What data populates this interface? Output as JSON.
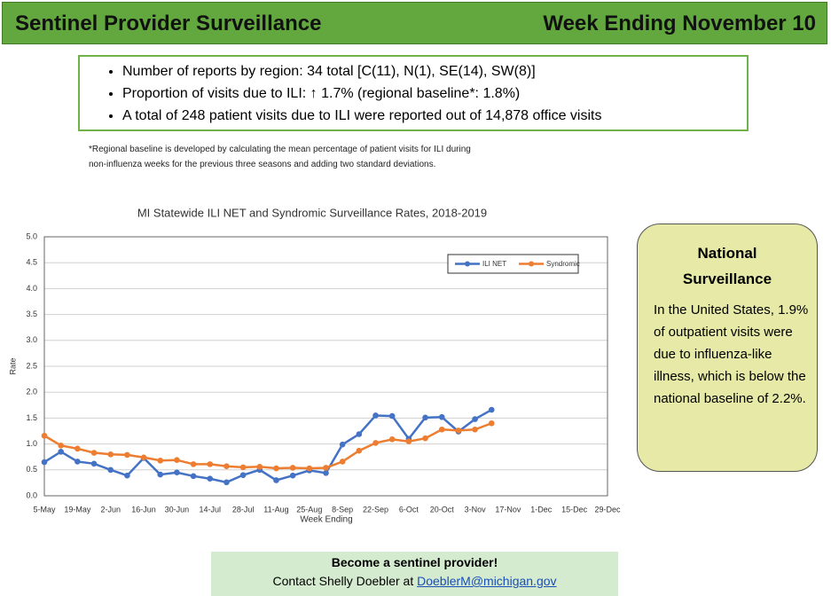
{
  "header": {
    "title": "Sentinel Provider Surveillance",
    "week": "Week Ending November 10"
  },
  "summary": {
    "bullets": [
      "Number of reports by region: 34 total [C(11), N(1), SE(14), SW(8)]",
      "Proportion of visits due to ILI: ↑ 1.7% (regional baseline*: 1.8%)",
      "A total of 248 patient visits due to ILI were reported out of 14,878 office visits"
    ]
  },
  "footnote": [
    "*Regional baseline is developed by calculating the mean percentage of patient visits for ILI during",
    "non-influenza weeks for the previous three seasons and adding two standard deviations."
  ],
  "chart_data": {
    "type": "line",
    "title": "MI Statewide ILI NET and Syndromic Surveillance Rates, 2018-2019",
    "x_label": "Week Ending",
    "y_label": "Rate",
    "categories": [
      "5-May",
      null,
      "19-May",
      null,
      "2-Jun",
      null,
      "16-Jun",
      null,
      "30-Jun",
      null,
      "14-Jul",
      null,
      "28-Jul",
      null,
      "11-Aug",
      null,
      "25-Aug",
      null,
      "8-Sep",
      null,
      "22-Sep",
      null,
      "6-Oct",
      null,
      "20-Oct",
      null,
      "3-Nov",
      null,
      "17-Nov",
      null,
      "1-Dec",
      null,
      "15-Dec",
      null,
      "29-Dec"
    ],
    "series": [
      {
        "name": "ILI NET",
        "color": "#4472c4",
        "values": [
          0.65,
          0.85,
          0.66,
          0.62,
          0.5,
          0.39,
          0.73,
          0.41,
          0.45,
          0.38,
          0.33,
          0.26,
          0.4,
          0.5,
          0.3,
          0.39,
          0.49,
          0.44,
          0.99,
          1.19,
          1.55,
          1.54,
          1.1,
          1.51,
          1.52,
          1.24,
          1.48,
          1.66,
          null,
          null,
          null,
          null,
          null,
          null,
          null
        ]
      },
      {
        "name": "Syndromic",
        "color": "#ed7d31",
        "values": [
          1.16,
          0.97,
          0.91,
          0.83,
          0.8,
          0.79,
          0.74,
          0.68,
          0.69,
          0.61,
          0.61,
          0.57,
          0.55,
          0.56,
          0.53,
          0.54,
          0.53,
          0.54,
          0.66,
          0.87,
          1.02,
          1.09,
          1.05,
          1.11,
          1.28,
          1.26,
          1.28,
          1.4,
          null,
          null,
          null,
          null,
          null,
          null,
          null
        ]
      }
    ],
    "ylim": [
      0,
      5
    ],
    "yticks": [
      {
        "value": 0,
        "label": "0.0"
      },
      0.5,
      {
        "value": 1,
        "label": "1.0"
      },
      1.5,
      {
        "value": 2,
        "label": "2.0"
      },
      2.5,
      {
        "value": 3,
        "label": "3.0"
      },
      3.5,
      {
        "value": 4,
        "label": "4.0"
      },
      4.5,
      {
        "value": 5,
        "label": "5.0"
      }
    ],
    "grid": true,
    "legend": "upper right"
  },
  "national": {
    "title": "National Surveillance",
    "text": "In the United States, 1.9% of outpatient visits were due to influenza-like illness, which is below the national baseline of 2.2%."
  },
  "footer": {
    "heading": "Become a sentinel provider!",
    "contact": "Contact Shelly Doebler at",
    "email": "DoeblerM@michigan.gov"
  }
}
